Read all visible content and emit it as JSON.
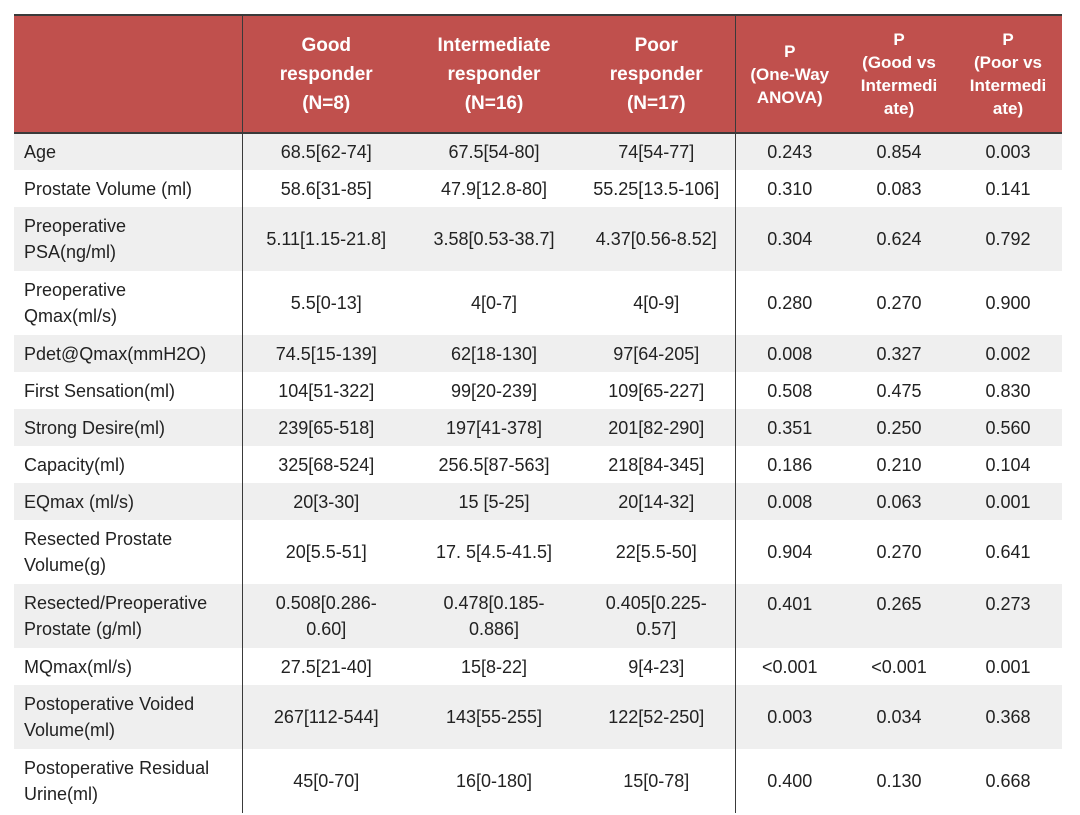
{
  "header": {
    "c0": "",
    "c1": [
      "Good",
      "responder",
      "(N=8)"
    ],
    "c2": [
      "Intermediate",
      "responder",
      "(N=16)"
    ],
    "c3": [
      "Poor",
      "responder",
      "(N=17)"
    ],
    "c4": [
      "P",
      "(One-Way",
      "ANOVA)"
    ],
    "c5": [
      "P",
      "(Good vs",
      "Intermedi",
      "ate)"
    ],
    "c6": [
      "P",
      "(Poor vs",
      "Intermedi",
      "ate)"
    ]
  },
  "rows": [
    {
      "label": [
        "Age"
      ],
      "good": [
        "68.5[62-74]"
      ],
      "inter": [
        "67.5[54-80]"
      ],
      "poor": [
        "74[54-77]"
      ],
      "anova": "0.243",
      "gvi": "0.854",
      "pvi": "0.003"
    },
    {
      "label": [
        "Prostate Volume (ml)"
      ],
      "good": [
        "58.6[31-85]"
      ],
      "inter": [
        "47.9[12.8-80]"
      ],
      "poor": [
        "55.25[13.5-106]"
      ],
      "anova": "0.310",
      "gvi": "0.083",
      "pvi": "0.141"
    },
    {
      "label": [
        "Preoperative",
        "PSA(ng/ml)"
      ],
      "good": [
        "5.11[1.15-21.8]"
      ],
      "inter": [
        "3.58[0.53-38.7]"
      ],
      "poor": [
        "4.37[0.56-8.52]"
      ],
      "anova": "0.304",
      "gvi": "0.624",
      "pvi": "0.792"
    },
    {
      "label": [
        "Preoperative",
        "Qmax(ml/s)"
      ],
      "good": [
        "5.5[0-13]"
      ],
      "inter": [
        "4[0-7]"
      ],
      "poor": [
        "4[0-9]"
      ],
      "anova": "0.280",
      "gvi": "0.270",
      "pvi": "0.900"
    },
    {
      "label": [
        "Pdet@Qmax(mmH2O)"
      ],
      "good": [
        "74.5[15-139]"
      ],
      "inter": [
        "62[18-130]"
      ],
      "poor": [
        "97[64-205]"
      ],
      "anova": "0.008",
      "gvi": "0.327",
      "pvi": "0.002"
    },
    {
      "label": [
        "First Sensation(ml)"
      ],
      "good": [
        "104[51-322]"
      ],
      "inter": [
        "99[20-239]"
      ],
      "poor": [
        "109[65-227]"
      ],
      "anova": "0.508",
      "gvi": "0.475",
      "pvi": "0.830"
    },
    {
      "label": [
        "Strong Desire(ml)"
      ],
      "good": [
        "239[65-518]"
      ],
      "inter": [
        "197[41-378]"
      ],
      "poor": [
        "201[82-290]"
      ],
      "anova": "0.351",
      "gvi": "0.250",
      "pvi": "0.560"
    },
    {
      "label": [
        "Capacity(ml)"
      ],
      "good": [
        "325[68-524]"
      ],
      "inter": [
        "256.5[87-563]"
      ],
      "poor": [
        "218[84-345]"
      ],
      "anova": "0.186",
      "gvi": "0.210",
      "pvi": "0.104"
    },
    {
      "label": [
        "EQmax (ml/s)"
      ],
      "good": [
        "20[3-30]"
      ],
      "inter": [
        "15 [5-25]"
      ],
      "poor": [
        "20[14-32]"
      ],
      "anova": "0.008",
      "gvi": "0.063",
      "pvi": "0.001"
    },
    {
      "label": [
        "Resected Prostate",
        "Volume(g)"
      ],
      "good": [
        "20[5.5-51]"
      ],
      "inter": [
        "17. 5[4.5-41.5]"
      ],
      "poor": [
        "22[5.5-50]"
      ],
      "anova": "0.904",
      "gvi": "0.270",
      "pvi": "0.641"
    },
    {
      "label": [
        "Resected/Preoperative",
        "Prostate (g/ml)"
      ],
      "good": [
        "0.508[0.286-",
        "0.60]"
      ],
      "inter": [
        "0.478[0.185-",
        "0.886]"
      ],
      "poor": [
        "0.405[0.225-",
        "0.57]"
      ],
      "anova": "0.401",
      "gvi": "0.265",
      "pvi": "0.273",
      "top": true
    },
    {
      "label": [
        "MQmax(ml/s)"
      ],
      "good": [
        "27.5[21-40]"
      ],
      "inter": [
        "15[8-22]"
      ],
      "poor": [
        "9[4-23]"
      ],
      "anova": "<0.001",
      "gvi": "<0.001",
      "pvi": "0.001"
    },
    {
      "label": [
        "Postoperative Voided",
        "Volume(ml)"
      ],
      "good": [
        "267[112-544]"
      ],
      "inter": [
        "143[55-255]"
      ],
      "poor": [
        "122[52-250]"
      ],
      "anova": "0.003",
      "gvi": "0.034",
      "pvi": "0.368"
    },
    {
      "label": [
        "Postoperative Residual",
        "Urine(ml)"
      ],
      "good": [
        "45[0-70]"
      ],
      "inter": [
        "16[0-180]"
      ],
      "poor": [
        "15[0-78]"
      ],
      "anova": "0.400",
      "gvi": "0.130",
      "pvi": "0.668"
    }
  ],
  "colors": {
    "header_bg": "#c0504d",
    "header_text": "#ffffff",
    "row_shade": "#efefef",
    "rule": "#3a3a3a"
  }
}
